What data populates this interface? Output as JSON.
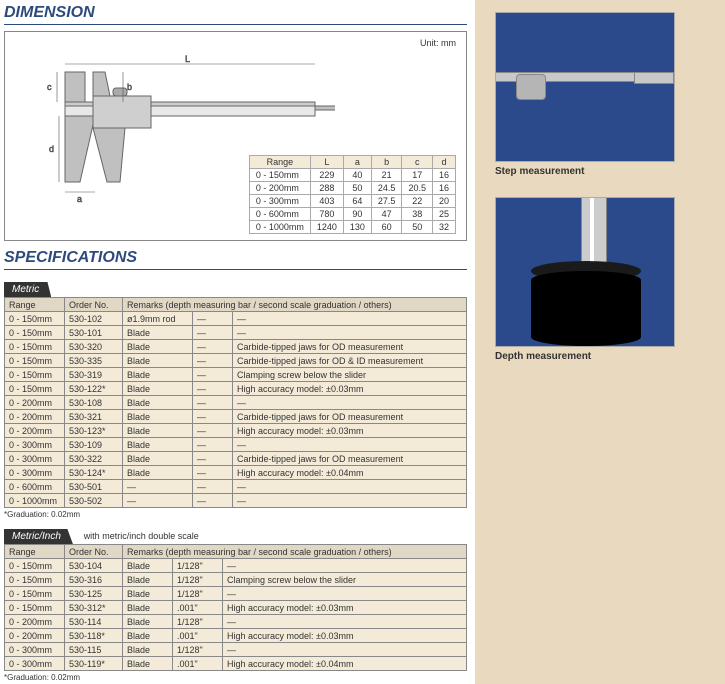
{
  "headings": {
    "dimension": "DIMENSION",
    "specifications": "SPECIFICATIONS"
  },
  "unit": "Unit: mm",
  "dimtable": {
    "cols": [
      "Range",
      "L",
      "a",
      "b",
      "c",
      "d"
    ],
    "rows": [
      [
        "0 - 150mm",
        "229",
        "40",
        "21",
        "17",
        "16"
      ],
      [
        "0 - 200mm",
        "288",
        "50",
        "24.5",
        "20.5",
        "16"
      ],
      [
        "0 - 300mm",
        "403",
        "64",
        "27.5",
        "22",
        "20"
      ],
      [
        "0 - 600mm",
        "780",
        "90",
        "47",
        "38",
        "25"
      ],
      [
        "0 - 1000mm",
        "1240",
        "130",
        "60",
        "50",
        "32"
      ]
    ]
  },
  "tabs": {
    "metric": "Metric",
    "metricInch": "Metric/Inch",
    "metricInchNote": "with metric/inch double scale"
  },
  "speccols": {
    "range": "Range",
    "order": "Order No.",
    "remarks": "Remarks (depth measuring bar / second scale graduation / others)"
  },
  "metric_rows": [
    [
      "0 - 150mm",
      "530-102",
      "ø1.9mm rod",
      "—",
      "—"
    ],
    [
      "0 - 150mm",
      "530-101",
      "Blade",
      "—",
      "—"
    ],
    [
      "0 - 150mm",
      "530-320",
      "Blade",
      "—",
      "Carbide-tipped jaws for OD measurement"
    ],
    [
      "0 - 150mm",
      "530-335",
      "Blade",
      "—",
      "Carbide-tipped jaws for OD & ID measurement"
    ],
    [
      "0 - 150mm",
      "530-319",
      "Blade",
      "—",
      "Clamping screw below the slider"
    ],
    [
      "0 - 150mm",
      "530-122*",
      "Blade",
      "—",
      "High accuracy model: ±0.03mm"
    ],
    [
      "0 - 200mm",
      "530-108",
      "Blade",
      "—",
      "—"
    ],
    [
      "0 - 200mm",
      "530-321",
      "Blade",
      "—",
      "Carbide-tipped jaws for OD measurement"
    ],
    [
      "0 - 200mm",
      "530-123*",
      "Blade",
      "—",
      "High accuracy model: ±0.03mm"
    ],
    [
      "0 - 300mm",
      "530-109",
      "Blade",
      "—",
      "—"
    ],
    [
      "0 - 300mm",
      "530-322",
      "Blade",
      "—",
      "Carbide-tipped jaws for OD measurement"
    ],
    [
      "0 - 300mm",
      "530-124*",
      "Blade",
      "—",
      "High accuracy model: ±0.04mm"
    ],
    [
      "0 - 600mm",
      "530-501",
      "—",
      "—",
      "—"
    ],
    [
      "0 - 1000mm",
      "530-502",
      "—",
      "—",
      "—"
    ]
  ],
  "mi_rows": [
    [
      "0 - 150mm",
      "530-104",
      "Blade",
      "1/128\"",
      "—"
    ],
    [
      "0 - 150mm",
      "530-316",
      "Blade",
      "1/128\"",
      "Clamping screw below the slider"
    ],
    [
      "0 - 150mm",
      "530-125",
      "Blade",
      "1/128\"",
      "—"
    ],
    [
      "0 - 150mm",
      "530-312*",
      "Blade",
      ".001\"",
      "High accuracy model: ±0.03mm"
    ],
    [
      "0 - 200mm",
      "530-114",
      "Blade",
      "1/128\"",
      "—"
    ],
    [
      "0 - 200mm",
      "530-118*",
      "Blade",
      ".001\"",
      "High accuracy model: ±0.03mm"
    ],
    [
      "0 - 300mm",
      "530-115",
      "Blade",
      "1/128\"",
      "—"
    ],
    [
      "0 - 300mm",
      "530-119*",
      "Blade",
      ".001\"",
      "High accuracy model: ±0.04mm"
    ]
  ],
  "footnote": "*Graduation: 0.02mm",
  "photos": {
    "step": "Step measurement",
    "depth": "Depth measurement"
  },
  "colors": {
    "heading": "#2d4a7d",
    "rowbg": "#f3ebd8",
    "tabbg": "#333333",
    "rightbg": "#e8d9bf",
    "photoBg": "#2a4a8c"
  }
}
